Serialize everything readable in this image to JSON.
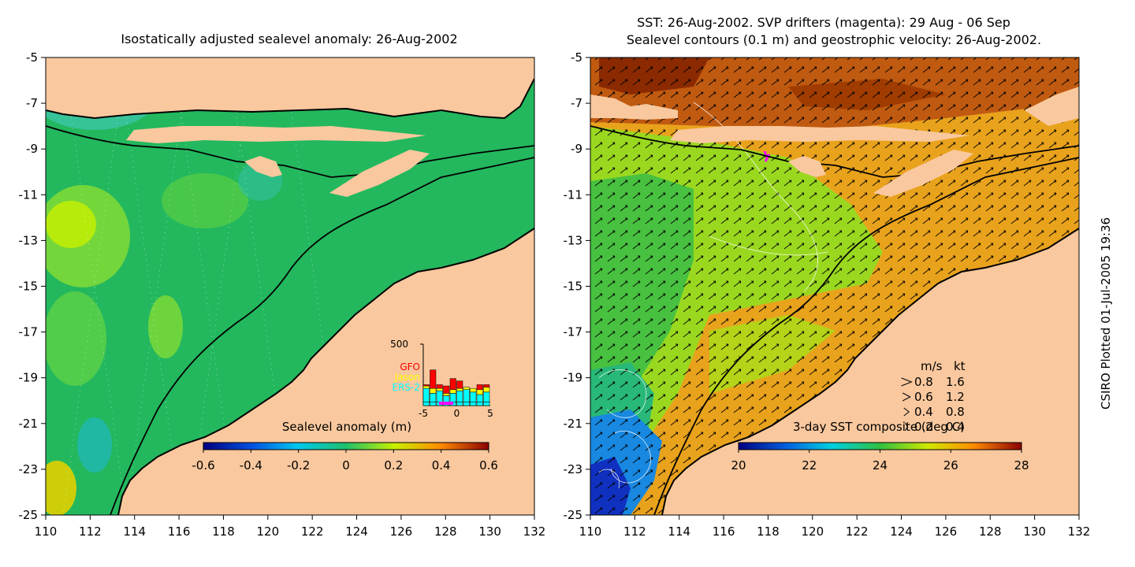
{
  "left_panel": {
    "title": "Isostatically adjusted sealevel anomaly: 26-Aug-2002",
    "colorbar": {
      "label": "Sealevel anomaly (m)",
      "ticks": [
        "-0.6",
        "-0.4",
        "-0.2",
        "0",
        "0.2",
        "0.4",
        "0.6"
      ],
      "range": [
        -0.6,
        0.6
      ]
    },
    "inset": {
      "ytick": "500",
      "legend": [
        {
          "label": "GFO",
          "color": "#ff0000"
        },
        {
          "label": "Jason",
          "color": "#ffff00"
        },
        {
          "label": "ERS-2",
          "color": "#00ffff"
        }
      ],
      "xticks": [
        "-5",
        "0",
        "5"
      ],
      "bars": [
        {
          "day": -5,
          "ers2": 140,
          "jason": 20,
          "gfo": 10
        },
        {
          "day": -4,
          "ers2": 100,
          "jason": 40,
          "gfo": 150
        },
        {
          "day": -3,
          "ers2": 120,
          "jason": 20,
          "gfo": 30
        },
        {
          "day": -2,
          "ers2": 80,
          "jason": 20,
          "gfo": 60
        },
        {
          "day": -1,
          "ers2": 100,
          "jason": 30,
          "gfo": 90
        },
        {
          "day": 0,
          "ers2": 120,
          "jason": 20,
          "gfo": 60
        },
        {
          "day": 1,
          "ers2": 130,
          "jason": 20,
          "gfo": 0
        },
        {
          "day": 2,
          "ers2": 110,
          "jason": 30,
          "gfo": 0
        },
        {
          "day": 3,
          "ers2": 90,
          "jason": 40,
          "gfo": 40
        },
        {
          "day": 4,
          "ers2": 110,
          "jason": 40,
          "gfo": 20
        }
      ]
    }
  },
  "right_panel": {
    "title_line1": "SST: 26-Aug-2002. SVP drifters (magenta): 29 Aug - 06 Sep",
    "title_line2": "Sealevel contours (0.1 m) and geostrophic velocity: 26-Aug-2002.",
    "colorbar": {
      "label": "3-day SST composite (deg C)",
      "ticks": [
        "20",
        "22",
        "24",
        "26",
        "28"
      ],
      "range": [
        20,
        28
      ]
    },
    "velocity_legend": {
      "header_ms": "m/s",
      "header_kt": "kt",
      "rows": [
        {
          "ms": "0.8",
          "kt": "1.6"
        },
        {
          "ms": "0.6",
          "kt": "1.2"
        },
        {
          "ms": "0.4",
          "kt": "0.8"
        },
        {
          "ms": "0.2",
          "kt": "0.4"
        }
      ]
    }
  },
  "axes": {
    "lon_ticks": [
      "110",
      "112",
      "114",
      "116",
      "118",
      "120",
      "122",
      "124",
      "126",
      "128",
      "130",
      "132"
    ],
    "lat_ticks": [
      "-5",
      "-7",
      "-9",
      "-11",
      "-13",
      "-15",
      "-17",
      "-19",
      "-21",
      "-23",
      "-25"
    ],
    "lon_range": [
      110,
      132
    ],
    "lat_range": [
      -25,
      -5
    ]
  },
  "credit": "CSIRO Plotted 01-Jul-2005 19:36",
  "colors": {
    "land": "#f9c89e",
    "coast": "#000000",
    "ssl_background": "#23b85e",
    "sst_background": "#e9a21c",
    "drifter": "#ff00ff"
  }
}
